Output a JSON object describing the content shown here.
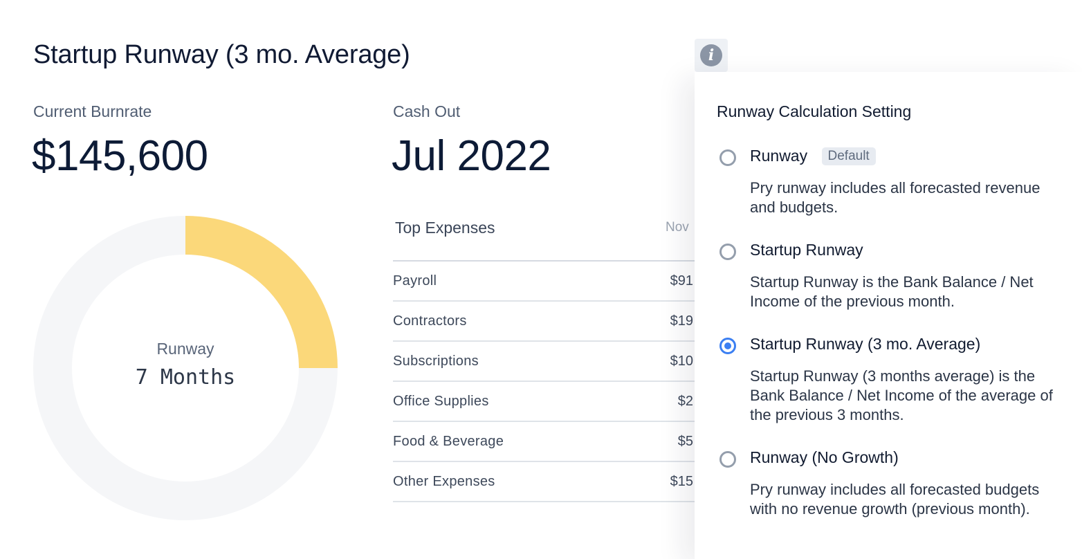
{
  "header": {
    "title": "Startup Runway (3 mo. Average)",
    "info_icon": "info-icon"
  },
  "stats": {
    "burnrate": {
      "label": "Current Burnrate",
      "value": "$145,600"
    },
    "cashout": {
      "label": "Cash Out",
      "value": "Jul 2022"
    }
  },
  "donut": {
    "label": "Runway",
    "value": "7 Months",
    "filled_fraction": 0.25,
    "colors": {
      "fill": "#fbd87a",
      "track": "#f5f6f8"
    }
  },
  "expenses": {
    "title": "Top Expenses",
    "column": "Nov",
    "rows": [
      {
        "name": "Payroll",
        "amount": "$91"
      },
      {
        "name": "Contractors",
        "amount": "$19"
      },
      {
        "name": "Subscriptions",
        "amount": "$10"
      },
      {
        "name": "Office Supplies",
        "amount": "$2"
      },
      {
        "name": "Food & Beverage",
        "amount": "$5"
      },
      {
        "name": "Other Expenses",
        "amount": "$15"
      }
    ]
  },
  "panel": {
    "title": "Runway Calculation Setting",
    "options": [
      {
        "label": "Runway",
        "badge": "Default",
        "description": "Pry runway includes all forecasted revenue and budgets.",
        "selected": false
      },
      {
        "label": "Startup Runway",
        "description": "Startup Runway is the Bank Balance / Net Income of the previous month.",
        "selected": false
      },
      {
        "label": "Startup Runway (3 mo. Average)",
        "description": "Startup Runway (3 months average) is the Bank Balance / Net Income of the average of the previous 3 months.",
        "selected": true
      },
      {
        "label": "Runway (No Growth)",
        "description": "Pry runway includes all forecasted budgets with no revenue growth (previous month).",
        "selected": false
      }
    ]
  },
  "colors": {
    "accent": "#3b7ff2",
    "text": "#0d1b36"
  }
}
